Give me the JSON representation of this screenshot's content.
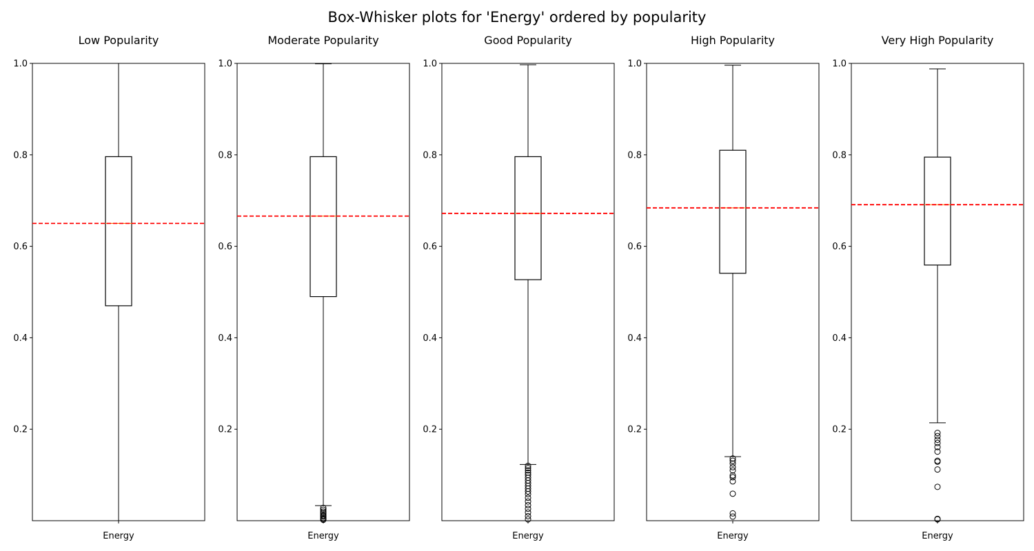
{
  "chart_data": {
    "type": "box",
    "title": "Box-Whisker plots for 'Energy' ordered by popularity",
    "colors": {
      "box": "#000000",
      "median": "#ff7f0e",
      "mean_line": "#ff0000",
      "outlier": "#000000"
    },
    "panels": [
      {
        "title": "Low Popularity",
        "category": "Energy",
        "ylim": [
          0,
          1.0
        ],
        "yticks": [
          "0.2",
          "0.4",
          "0.6",
          "0.8",
          "1.0"
        ],
        "box": {
          "whisker_low": 0.0,
          "q1": 0.47,
          "median": 0.65,
          "q3": 0.796,
          "whisker_high": 1.0
        },
        "mean": 0.65,
        "outliers": []
      },
      {
        "title": "Moderate Popularity",
        "category": "Energy",
        "ylim": [
          0,
          1.0
        ],
        "yticks": [
          "0.2",
          "0.4",
          "0.6",
          "0.8",
          "1.0"
        ],
        "box": {
          "whisker_low": 0.033,
          "q1": 0.49,
          "median": 0.666,
          "q3": 0.796,
          "whisker_high": 0.999
        },
        "mean": 0.666,
        "outliers": [
          0.028,
          0.024,
          0.02,
          0.017,
          0.014,
          0.011,
          0.009,
          0.006,
          0.004,
          0.002
        ]
      },
      {
        "title": "Good Popularity",
        "category": "Energy",
        "ylim": [
          0,
          1.0
        ],
        "yticks": [
          "0.2",
          "0.4",
          "0.6",
          "0.8",
          "1.0"
        ],
        "box": {
          "whisker_low": 0.123,
          "q1": 0.527,
          "median": 0.672,
          "q3": 0.796,
          "whisker_high": 0.997
        },
        "mean": 0.672,
        "outliers": [
          0.12,
          0.115,
          0.11,
          0.105,
          0.1,
          0.094,
          0.088,
          0.082,
          0.076,
          0.07,
          0.064,
          0.058,
          0.05,
          0.042,
          0.034,
          0.026,
          0.018,
          0.01,
          0.003
        ]
      },
      {
        "title": "High Popularity",
        "category": "Energy",
        "ylim": [
          0,
          1.0
        ],
        "yticks": [
          "0.2",
          "0.4",
          "0.6",
          "0.8",
          "1.0"
        ],
        "box": {
          "whisker_low": 0.14,
          "q1": 0.541,
          "median": 0.684,
          "q3": 0.81,
          "whisker_high": 0.996
        },
        "mean": 0.684,
        "outliers": [
          0.136,
          0.131,
          0.125,
          0.117,
          0.11,
          0.099,
          0.095,
          0.086,
          0.059,
          0.016,
          0.009
        ]
      },
      {
        "title": "Very High Popularity",
        "category": "Energy",
        "ylim": [
          0,
          1.0
        ],
        "yticks": [
          "0.2",
          "0.4",
          "0.6",
          "0.8",
          "1.0"
        ],
        "box": {
          "whisker_low": 0.214,
          "q1": 0.559,
          "median": 0.691,
          "q3": 0.795,
          "whisker_high": 0.988
        },
        "mean": 0.691,
        "outliers": [
          0.192,
          0.185,
          0.177,
          0.17,
          0.161,
          0.151,
          0.131,
          0.129,
          0.112,
          0.074,
          0.004,
          0.003
        ]
      }
    ]
  }
}
